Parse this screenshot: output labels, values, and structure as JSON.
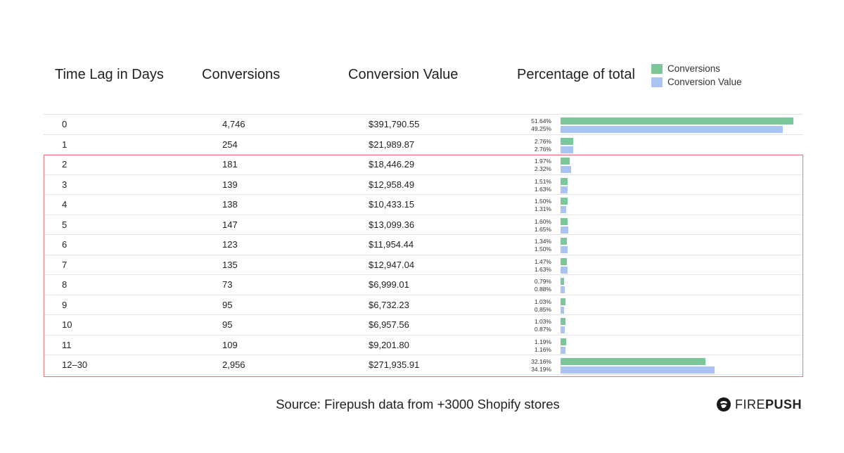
{
  "headers": {
    "lag": "Time Lag in Days",
    "conversions": "Conversions",
    "value": "Conversion Value",
    "percentage": "Percentage of total"
  },
  "legend": [
    {
      "label": "Conversions",
      "color": "#7bc79a"
    },
    {
      "label": "Conversion Value",
      "color": "#a9c4f1"
    }
  ],
  "chart_data": {
    "type": "bar",
    "orientation": "horizontal",
    "categories": [
      "0",
      "1",
      "2",
      "3",
      "4",
      "5",
      "6",
      "7",
      "8",
      "9",
      "10",
      "11",
      "12–30"
    ],
    "series": [
      {
        "name": "Conversions",
        "values": [
          51.64,
          2.76,
          1.97,
          1.51,
          1.5,
          1.6,
          1.34,
          1.47,
          0.79,
          1.03,
          1.03,
          1.19,
          32.16
        ],
        "color": "#7bc79a"
      },
      {
        "name": "Conversion Value",
        "values": [
          49.25,
          2.76,
          2.32,
          1.63,
          1.31,
          1.65,
          1.5,
          1.63,
          0.88,
          0.85,
          0.87,
          1.16,
          34.19
        ],
        "color": "#a9c4f1"
      }
    ],
    "xlim": [
      0,
      53
    ],
    "legend_position": "top-right",
    "grid": false
  },
  "rows": [
    {
      "lag": "0",
      "conversions": "4,746",
      "value": "$391,790.55",
      "pct_conv": "51.64%",
      "pct_val": "49.25%"
    },
    {
      "lag": "1",
      "conversions": "254",
      "value": "$21,989.87",
      "pct_conv": "2.76%",
      "pct_val": "2.76%"
    },
    {
      "lag": "2",
      "conversions": "181",
      "value": "$18,446.29",
      "pct_conv": "1.97%",
      "pct_val": "2.32%"
    },
    {
      "lag": "3",
      "conversions": "139",
      "value": "$12,958.49",
      "pct_conv": "1.51%",
      "pct_val": "1.63%"
    },
    {
      "lag": "4",
      "conversions": "138",
      "value": "$10,433.15",
      "pct_conv": "1.50%",
      "pct_val": "1.31%"
    },
    {
      "lag": "5",
      "conversions": "147",
      "value": "$13,099.36",
      "pct_conv": "1.60%",
      "pct_val": "1.65%"
    },
    {
      "lag": "6",
      "conversions": "123",
      "value": "$11,954.44",
      "pct_conv": "1.34%",
      "pct_val": "1.50%"
    },
    {
      "lag": "7",
      "conversions": "135",
      "value": "$12,947.04",
      "pct_conv": "1.47%",
      "pct_val": "1.63%"
    },
    {
      "lag": "8",
      "conversions": "73",
      "value": "$6,999.01",
      "pct_conv": "0.79%",
      "pct_val": "0.88%"
    },
    {
      "lag": "9",
      "conversions": "95",
      "value": "$6,732.23",
      "pct_conv": "1.03%",
      "pct_val": "0.85%"
    },
    {
      "lag": "10",
      "conversions": "95",
      "value": "$6,957.56",
      "pct_conv": "1.03%",
      "pct_val": "0.87%"
    },
    {
      "lag": "11",
      "conversions": "109",
      "value": "$9,201.80",
      "pct_conv": "1.19%",
      "pct_val": "1.16%"
    },
    {
      "lag": "12–30",
      "conversions": "2,956",
      "value": "$271,935.91",
      "pct_conv": "32.16%",
      "pct_val": "34.19%"
    }
  ],
  "highlight": {
    "color": "#e07a7a"
  },
  "source": "Source: Firepush data from +3000 Shopify stores",
  "logo": {
    "fire": "FIRE",
    "push": "PUSH",
    "icon": "firepush-logo-icon"
  }
}
